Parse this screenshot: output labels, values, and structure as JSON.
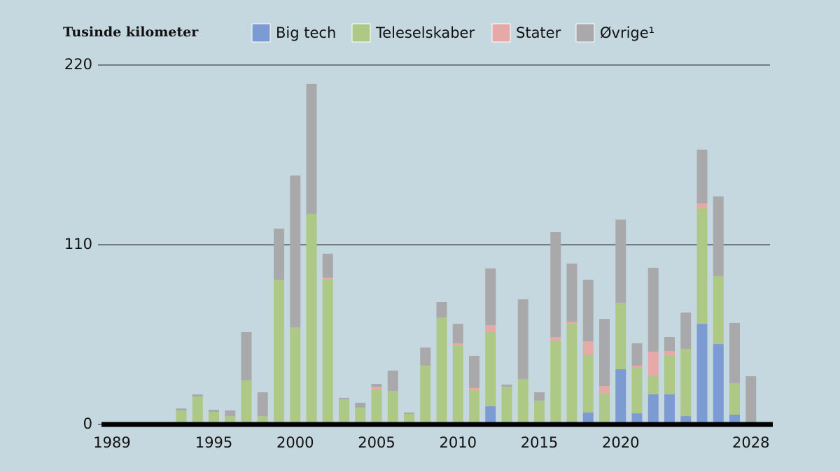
{
  "chart_data": {
    "type": "stacked_bar",
    "title": "Tusinde kilometer",
    "categories": [
      "1989",
      null,
      null,
      null,
      null,
      null,
      "1995",
      null,
      null,
      null,
      null,
      "2000",
      null,
      null,
      null,
      null,
      "2005",
      null,
      null,
      null,
      null,
      "2010",
      null,
      null,
      null,
      null,
      "2015",
      null,
      null,
      null,
      null,
      "2020",
      null,
      null,
      null,
      null,
      null,
      null,
      null,
      "2028"
    ],
    "series": [
      {
        "name": "Big tech",
        "color": "#7b9bd2",
        "values": [
          0,
          0,
          0,
          0,
          0,
          0,
          0,
          0,
          0,
          0,
          0,
          0,
          0,
          0,
          0,
          0,
          0,
          0,
          0,
          0,
          0,
          0,
          0,
          11.1,
          0,
          0,
          0,
          1.7,
          1.7,
          7.3,
          0.9,
          33.8,
          6.8,
          18.4,
          18.4,
          5.1,
          61.6,
          49.2,
          6,
          0
        ]
      },
      {
        "name": "Teleselskaber",
        "color": "#aec885",
        "values": [
          0,
          0,
          0,
          0,
          8.6,
          17.1,
          7.7,
          5.1,
          27,
          5.1,
          88.6,
          59.5,
          128.9,
          88.6,
          15.4,
          10.3,
          21.4,
          20.5,
          6.4,
          36,
          65.5,
          48.4,
          21,
          45.4,
          23.1,
          27.8,
          14.6,
          49.7,
          59.9,
          35.5,
          18.4,
          40.7,
          28.3,
          11.1,
          24,
          41.1,
          70.7,
          41.6,
          19.3,
          0
        ]
      },
      {
        "name": "Stater",
        "color": "#e6a9a8",
        "values": [
          0,
          0,
          0,
          0.5,
          0,
          0,
          0,
          0,
          0,
          0,
          0,
          0,
          0,
          1.3,
          0,
          0,
          1.7,
          0,
          0,
          0,
          0,
          1.3,
          1.3,
          4.3,
          0,
          0,
          0,
          2.1,
          1.3,
          8.1,
          4.2,
          0,
          0.9,
          15,
          2.5,
          0,
          3,
          0,
          0,
          0
        ]
      },
      {
        "name": "Øvrige¹",
        "color": "#a9a9ab",
        "values": [
          0,
          0,
          0,
          1,
          1.2,
          1.3,
          1.3,
          3.5,
          29.5,
          14.6,
          31.3,
          92.9,
          79.6,
          14.6,
          0.9,
          3,
          1.7,
          12.5,
          0.9,
          11.1,
          9.4,
          11.9,
          19.7,
          34.7,
          1.3,
          48.8,
          5.1,
          64.2,
          35.6,
          37.7,
          41.1,
          50.9,
          13.7,
          51.4,
          8.6,
          22.3,
          32.9,
          48.8,
          36.8,
          29.5
        ]
      }
    ],
    "ylim": [
      0,
      220
    ],
    "yticks": [
      0,
      110,
      220
    ],
    "grid": true
  }
}
